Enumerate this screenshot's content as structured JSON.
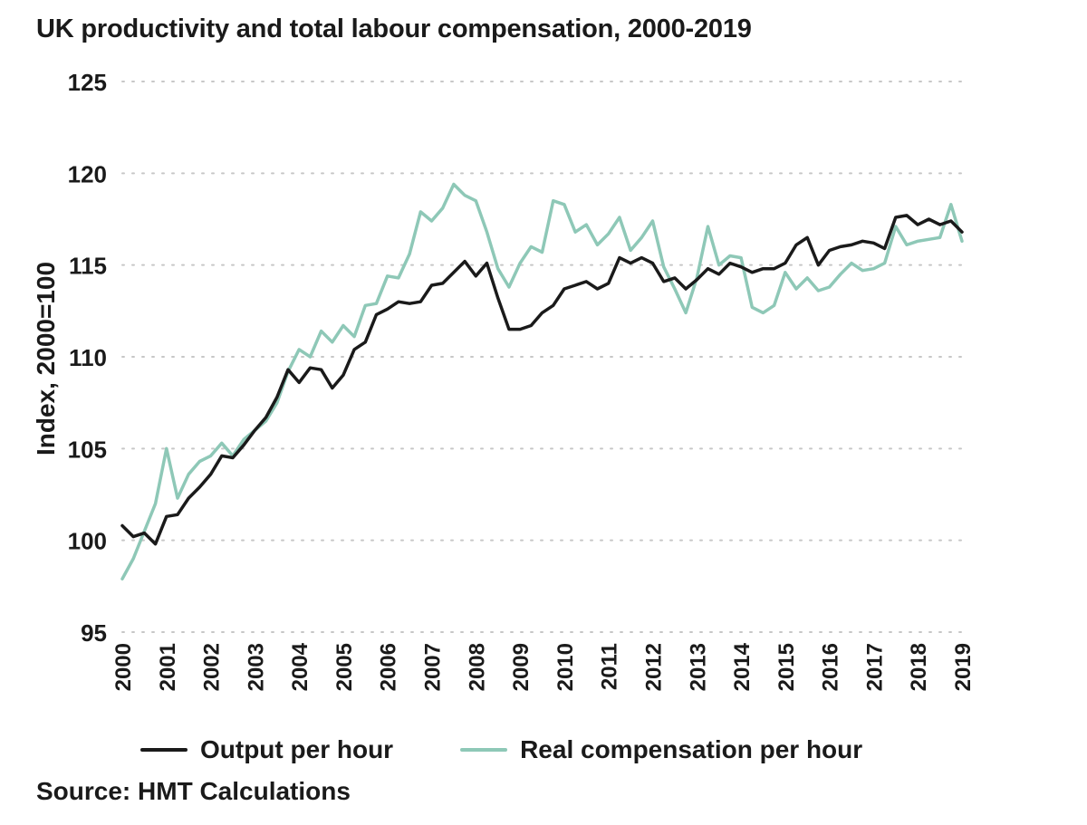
{
  "colors": {
    "output": "#1a1a1a",
    "compensation": "#8ec8b7",
    "grid": "#c7c7c7"
  },
  "source": "Source: HMT Calculations",
  "chart_data": {
    "type": "line",
    "title": "UK productivity and total labour compensation, 2000-2019",
    "xlabel": "",
    "ylabel": "Index, 2000=100",
    "ylim": [
      95,
      125
    ],
    "yticks": [
      95,
      100,
      105,
      110,
      115,
      120,
      125
    ],
    "xlim": [
      2000,
      2019
    ],
    "xticks": [
      "2000",
      "2001",
      "2002",
      "2003",
      "2004",
      "2005",
      "2006",
      "2007",
      "2008",
      "2009",
      "2010",
      "2011",
      "2012",
      "2013",
      "2014",
      "2015",
      "2016",
      "2017",
      "2018",
      "2019"
    ],
    "grid": true,
    "legend_position": "bottom",
    "x": [
      2000.0,
      2000.25,
      2000.5,
      2000.75,
      2001.0,
      2001.25,
      2001.5,
      2001.75,
      2002.0,
      2002.25,
      2002.5,
      2002.75,
      2003.0,
      2003.25,
      2003.5,
      2003.75,
      2004.0,
      2004.25,
      2004.5,
      2004.75,
      2005.0,
      2005.25,
      2005.5,
      2005.75,
      2006.0,
      2006.25,
      2006.5,
      2006.75,
      2007.0,
      2007.25,
      2007.5,
      2007.75,
      2008.0,
      2008.25,
      2008.5,
      2008.75,
      2009.0,
      2009.25,
      2009.5,
      2009.75,
      2010.0,
      2010.25,
      2010.5,
      2010.75,
      2011.0,
      2011.25,
      2011.5,
      2011.75,
      2012.0,
      2012.25,
      2012.5,
      2012.75,
      2013.0,
      2013.25,
      2013.5,
      2013.75,
      2014.0,
      2014.25,
      2014.5,
      2014.75,
      2015.0,
      2015.25,
      2015.5,
      2015.75,
      2016.0,
      2016.25,
      2016.5,
      2016.75,
      2017.0,
      2017.25,
      2017.5,
      2017.75,
      2018.0,
      2018.25,
      2018.5,
      2018.75,
      2019.0
    ],
    "series": [
      {
        "name": "Output per hour",
        "color_key": "output",
        "values": [
          100.8,
          100.2,
          100.4,
          99.8,
          101.3,
          101.4,
          102.3,
          102.9,
          103.6,
          104.6,
          104.5,
          105.2,
          106.0,
          106.7,
          107.8,
          109.3,
          108.6,
          109.4,
          109.3,
          108.3,
          109.0,
          110.4,
          110.8,
          112.3,
          112.6,
          113.0,
          112.9,
          113.0,
          113.9,
          114.0,
          114.6,
          115.2,
          114.4,
          115.1,
          113.2,
          111.5,
          111.5,
          111.7,
          112.4,
          112.8,
          113.7,
          113.9,
          114.1,
          113.7,
          114.0,
          115.4,
          115.1,
          115.4,
          115.1,
          114.1,
          114.3,
          113.7,
          114.2,
          114.8,
          114.5,
          115.1,
          114.9,
          114.6,
          114.8,
          114.8,
          115.1,
          116.1,
          116.5,
          115.0,
          115.8,
          116.0,
          116.1,
          116.3,
          116.2,
          115.9,
          117.6,
          117.7,
          117.2,
          117.5,
          117.2,
          117.4,
          116.8
        ]
      },
      {
        "name": "Real compensation per hour",
        "color_key": "compensation",
        "values": [
          97.9,
          99.0,
          100.5,
          102.0,
          105.0,
          102.3,
          103.6,
          104.3,
          104.6,
          105.3,
          104.6,
          105.5,
          106.0,
          106.5,
          107.5,
          109.2,
          110.4,
          110.0,
          111.4,
          110.8,
          111.7,
          111.1,
          112.8,
          112.9,
          114.4,
          114.3,
          115.6,
          117.9,
          117.4,
          118.1,
          119.4,
          118.8,
          118.5,
          116.8,
          114.8,
          113.8,
          115.1,
          116.0,
          115.7,
          118.5,
          118.3,
          116.8,
          117.2,
          116.1,
          116.7,
          117.6,
          115.8,
          116.5,
          117.4,
          114.9,
          113.7,
          112.4,
          114.3,
          117.1,
          115.0,
          115.5,
          115.4,
          112.7,
          112.4,
          112.8,
          114.6,
          113.7,
          114.3,
          113.6,
          113.8,
          114.5,
          115.1,
          114.7,
          114.8,
          115.1,
          117.1,
          116.1,
          116.3,
          116.4,
          116.5,
          118.3,
          116.3
        ]
      }
    ]
  }
}
